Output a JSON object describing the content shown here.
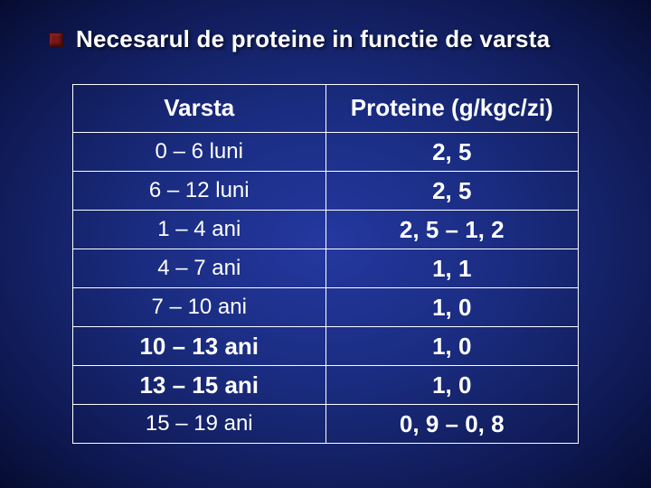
{
  "title": "Necesarul de proteine in functie de varsta",
  "table": {
    "headers": [
      "Varsta",
      "Proteine (g/kgc/zi)"
    ],
    "rows": [
      {
        "age": "0 – 6 luni",
        "value": "2, 5",
        "age_big": false,
        "val_big": true
      },
      {
        "age": "6 – 12 luni",
        "value": "2, 5",
        "age_big": false,
        "val_big": true
      },
      {
        "age": "1 – 4 ani",
        "value": "2, 5 – 1, 2",
        "age_big": false,
        "val_big": true
      },
      {
        "age": "4 – 7 ani",
        "value": "1, 1",
        "age_big": false,
        "val_big": true
      },
      {
        "age": "7 – 10 ani",
        "value": "1, 0",
        "age_big": false,
        "val_big": true
      },
      {
        "age": "10 – 13 ani",
        "value": "1, 0",
        "age_big": true,
        "val_big": true
      },
      {
        "age": "13 – 15 ani",
        "value": "1, 0",
        "age_big": true,
        "val_big": true
      },
      {
        "age": "15 – 19 ani",
        "value": "0, 9 – 0, 8",
        "age_big": false,
        "val_big": true
      }
    ]
  },
  "colors": {
    "bg_center": "#2438a0",
    "bg_edge": "#060c30",
    "bullet": "#7a1818",
    "border": "#ffffff",
    "text": "#ffffff"
  }
}
